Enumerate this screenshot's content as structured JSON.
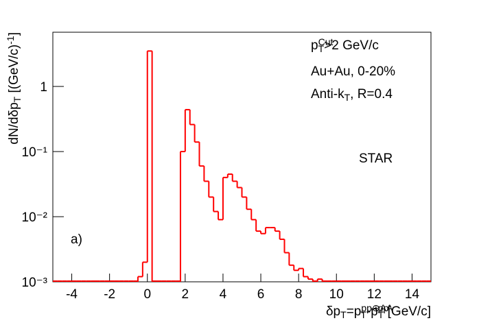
{
  "chart_data": {
    "type": "histogram",
    "log_y": true,
    "color": "#ff0000",
    "bins": [
      -5,
      -4.75,
      -4.5,
      -4.25,
      -4,
      -3.75,
      -3.5,
      -3.25,
      -3,
      -2.75,
      -2.5,
      -2.25,
      -2,
      -1.75,
      -1.5,
      -1.25,
      -1,
      -0.75,
      -0.5,
      -0.25,
      0,
      0.25,
      0.5,
      0.75,
      1,
      1.25,
      1.5,
      1.75,
      2,
      2.25,
      2.5,
      2.75,
      3,
      3.25,
      3.5,
      3.75,
      4,
      4.25,
      4.5,
      4.75,
      5,
      5.25,
      5.5,
      5.75,
      6,
      6.25,
      6.5,
      6.75,
      7,
      7.25,
      7.5,
      7.75,
      8,
      8.25,
      8.5,
      8.75,
      9,
      9.25,
      9.5,
      9.75,
      10,
      10.25,
      10.5,
      10.75,
      11,
      11.25,
      11.5,
      11.75,
      12,
      12.25,
      12.5,
      12.75,
      13,
      13.25,
      13.5,
      13.75,
      14,
      14.25,
      14.5,
      14.75,
      15
    ],
    "values": [
      null,
      null,
      null,
      null,
      null,
      null,
      null,
      null,
      null,
      null,
      null,
      null,
      null,
      null,
      null,
      null,
      null,
      null,
      0.0012,
      0.002,
      3.5,
      null,
      null,
      null,
      null,
      null,
      null,
      0.1,
      0.44,
      0.26,
      0.14,
      0.06,
      0.035,
      0.02,
      0.012,
      0.009,
      0.04,
      0.045,
      0.035,
      0.028,
      0.02,
      0.013,
      0.009,
      0.006,
      0.0055,
      0.0068,
      0.0068,
      0.006,
      0.0045,
      0.0028,
      0.0018,
      0.0015,
      0.0016,
      0.0012,
      0.0011,
      null,
      0.0011,
      null,
      null,
      null,
      null,
      null,
      null,
      null,
      null,
      null,
      null,
      null,
      null,
      null,
      null,
      null,
      null,
      null,
      null,
      null,
      null,
      null,
      null,
      null
    ],
    "xlim": [
      -5,
      15
    ],
    "xticks": [
      -4,
      -2,
      0,
      2,
      4,
      6,
      8,
      10,
      12,
      14
    ],
    "ylim": [
      0.001,
      6.8
    ],
    "yticks": [
      {
        "value": 0.001,
        "label": "10⁻³"
      },
      {
        "value": 0.01,
        "label": "10⁻²"
      },
      {
        "value": 0.1,
        "label": "10⁻¹"
      },
      1
    ],
    "x_label": [
      {
        "text": "δp"
      },
      {
        "text": "T",
        "sub": true
      },
      {
        "text": "=p"
      },
      {
        "text": "pp⊕AA",
        "sup": true
      },
      {
        "text": "T",
        "sub": true,
        "back": true
      },
      {
        "text": "-p"
      },
      {
        "text": "pp",
        "sup": true
      },
      {
        "text": "T",
        "sub": true,
        "back": true
      },
      {
        "text": " [GeV/c]"
      }
    ],
    "y_label": [
      {
        "text": "dN/dδp"
      },
      {
        "text": "T",
        "sub": true
      },
      {
        "text": " [(GeV/c)"
      },
      {
        "text": "-1",
        "sup": true
      },
      {
        "text": "]"
      }
    ],
    "annotations": [
      {
        "parts": [
          {
            "text": "p"
          },
          {
            "text": "Cut",
            "sup": true
          },
          {
            "text": "T",
            "sub": true,
            "back": true
          },
          {
            "text": ">2 GeV/c"
          }
        ]
      },
      {
        "parts": [
          {
            "text": "Au+Au, 0-20%"
          }
        ]
      },
      {
        "parts": [
          {
            "text": "Anti-k"
          },
          {
            "text": "T",
            "sub": true
          },
          {
            "text": ", R=0.4"
          }
        ]
      },
      {
        "parts": [
          {
            "text": "STAR"
          }
        ],
        "color": "#1f3f9f"
      },
      {
        "parts": [
          {
            "text": "a)"
          }
        ]
      }
    ]
  }
}
